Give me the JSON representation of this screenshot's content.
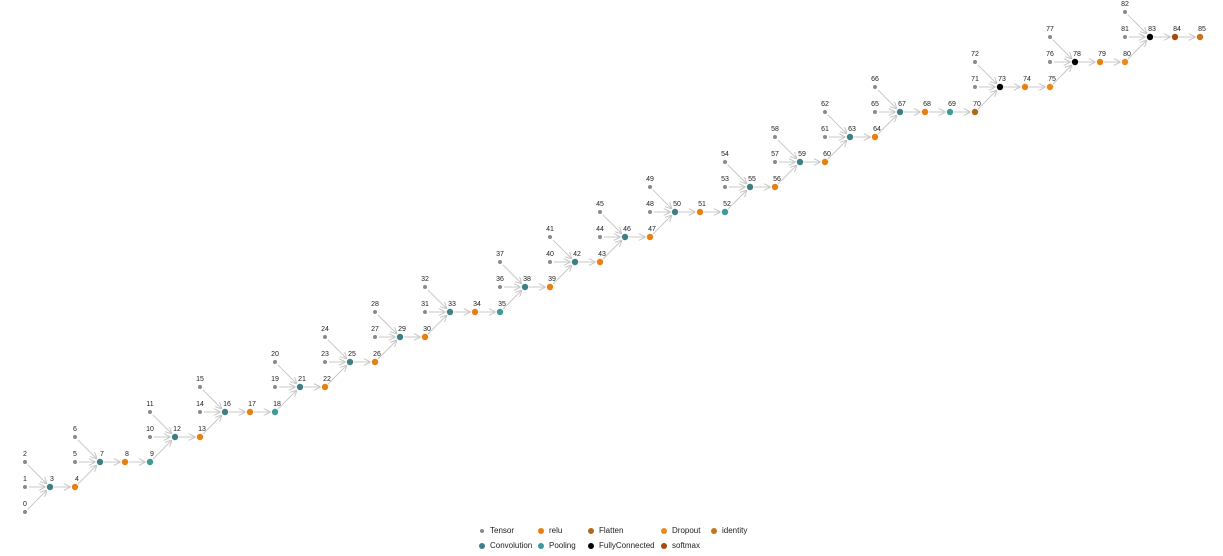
{
  "nodes": [
    {
      "label": "0",
      "type": "Tensor"
    },
    {
      "label": "1",
      "type": "Tensor"
    },
    {
      "label": "2",
      "type": "Tensor"
    },
    {
      "label": "3",
      "type": "Convolution"
    },
    {
      "label": "4",
      "type": "relu"
    },
    {
      "label": "5",
      "type": "Tensor"
    },
    {
      "label": "6",
      "type": "Tensor"
    },
    {
      "label": "7",
      "type": "Convolution"
    },
    {
      "label": "8",
      "type": "relu"
    },
    {
      "label": "9",
      "type": "Pooling"
    },
    {
      "label": "10",
      "type": "Tensor"
    },
    {
      "label": "11",
      "type": "Tensor"
    },
    {
      "label": "12",
      "type": "Convolution"
    },
    {
      "label": "13",
      "type": "relu"
    },
    {
      "label": "14",
      "type": "Tensor"
    },
    {
      "label": "15",
      "type": "Tensor"
    },
    {
      "label": "16",
      "type": "Convolution"
    },
    {
      "label": "17",
      "type": "relu"
    },
    {
      "label": "18",
      "type": "Pooling"
    },
    {
      "label": "19",
      "type": "Tensor"
    },
    {
      "label": "20",
      "type": "Tensor"
    },
    {
      "label": "21",
      "type": "Convolution"
    },
    {
      "label": "22",
      "type": "relu"
    },
    {
      "label": "23",
      "type": "Tensor"
    },
    {
      "label": "24",
      "type": "Tensor"
    },
    {
      "label": "25",
      "type": "Convolution"
    },
    {
      "label": "26",
      "type": "relu"
    },
    {
      "label": "27",
      "type": "Tensor"
    },
    {
      "label": "28",
      "type": "Tensor"
    },
    {
      "label": "29",
      "type": "Convolution"
    },
    {
      "label": "30",
      "type": "relu"
    },
    {
      "label": "31",
      "type": "Tensor"
    },
    {
      "label": "32",
      "type": "Tensor"
    },
    {
      "label": "33",
      "type": "Convolution"
    },
    {
      "label": "34",
      "type": "relu"
    },
    {
      "label": "35",
      "type": "Pooling"
    },
    {
      "label": "36",
      "type": "Tensor"
    },
    {
      "label": "37",
      "type": "Tensor"
    },
    {
      "label": "38",
      "type": "Convolution"
    },
    {
      "label": "39",
      "type": "relu"
    },
    {
      "label": "40",
      "type": "Tensor"
    },
    {
      "label": "41",
      "type": "Tensor"
    },
    {
      "label": "42",
      "type": "Convolution"
    },
    {
      "label": "43",
      "type": "relu"
    },
    {
      "label": "44",
      "type": "Tensor"
    },
    {
      "label": "45",
      "type": "Tensor"
    },
    {
      "label": "46",
      "type": "Convolution"
    },
    {
      "label": "47",
      "type": "relu"
    },
    {
      "label": "48",
      "type": "Tensor"
    },
    {
      "label": "49",
      "type": "Tensor"
    },
    {
      "label": "50",
      "type": "Convolution"
    },
    {
      "label": "51",
      "type": "relu"
    },
    {
      "label": "52",
      "type": "Pooling"
    },
    {
      "label": "53",
      "type": "Tensor"
    },
    {
      "label": "54",
      "type": "Tensor"
    },
    {
      "label": "55",
      "type": "Convolution"
    },
    {
      "label": "56",
      "type": "relu"
    },
    {
      "label": "57",
      "type": "Tensor"
    },
    {
      "label": "58",
      "type": "Tensor"
    },
    {
      "label": "59",
      "type": "Convolution"
    },
    {
      "label": "60",
      "type": "relu"
    },
    {
      "label": "61",
      "type": "Tensor"
    },
    {
      "label": "62",
      "type": "Tensor"
    },
    {
      "label": "63",
      "type": "Convolution"
    },
    {
      "label": "64",
      "type": "relu"
    },
    {
      "label": "65",
      "type": "Tensor"
    },
    {
      "label": "66",
      "type": "Tensor"
    },
    {
      "label": "67",
      "type": "Convolution"
    },
    {
      "label": "68",
      "type": "relu"
    },
    {
      "label": "69",
      "type": "Pooling"
    },
    {
      "label": "70",
      "type": "Flatten"
    },
    {
      "label": "71",
      "type": "Tensor"
    },
    {
      "label": "72",
      "type": "Tensor"
    },
    {
      "label": "73",
      "type": "FullyConnected"
    },
    {
      "label": "74",
      "type": "relu"
    },
    {
      "label": "75",
      "type": "Dropout"
    },
    {
      "label": "76",
      "type": "Tensor"
    },
    {
      "label": "77",
      "type": "Tensor"
    },
    {
      "label": "78",
      "type": "FullyConnected"
    },
    {
      "label": "79",
      "type": "relu"
    },
    {
      "label": "80",
      "type": "Dropout"
    },
    {
      "label": "81",
      "type": "Tensor"
    },
    {
      "label": "82",
      "type": "Tensor"
    },
    {
      "label": "83",
      "type": "FullyConnected"
    },
    {
      "label": "84",
      "type": "softmax"
    },
    {
      "label": "85",
      "type": "identity"
    }
  ],
  "legend": [
    {
      "name": "Tensor",
      "color": "#8a8a8a"
    },
    {
      "name": "Convolution",
      "color": "#3d7f85"
    },
    {
      "name": "relu",
      "color": "#e8800f"
    },
    {
      "name": "Pooling",
      "color": "#3f9a97"
    },
    {
      "name": "Flatten",
      "color": "#b0691a"
    },
    {
      "name": "FullyConnected",
      "color": "#000000"
    },
    {
      "name": "Dropout",
      "color": "#ea8a1a"
    },
    {
      "name": "softmax",
      "color": "#a64a0f"
    },
    {
      "name": "identity",
      "color": "#c8741c"
    }
  ]
}
